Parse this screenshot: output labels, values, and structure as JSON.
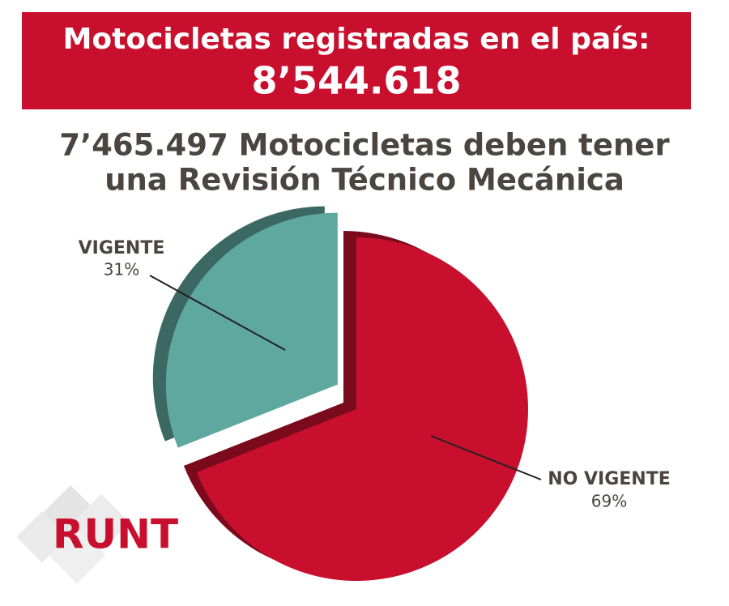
{
  "chart_data": {
    "type": "pie",
    "title": "Motocicletas registradas en el país:",
    "total": "8’544.618",
    "subtitle": [
      "7’465.497 Motocicletas deben tener",
      "una Revisión Técnico Mecánica"
    ],
    "categories": [
      "VIGENTE",
      "NO VIGENTE"
    ],
    "values": [
      31,
      69
    ],
    "value_labels": [
      "31%",
      "69%"
    ],
    "colors": [
      "#5fa8a0",
      "#c8102e"
    ],
    "logo": "RUNT"
  }
}
